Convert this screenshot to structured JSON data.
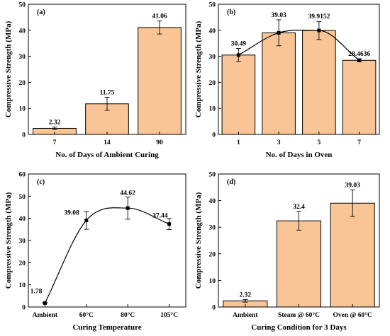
{
  "style": {
    "bar_fill": "#F9C596",
    "bar_stroke": "#000000",
    "line_color": "#000000"
  },
  "chart_data": [
    {
      "panel": "(a)",
      "type": "bar",
      "categories": [
        "7",
        "14",
        "90"
      ],
      "values": [
        2.32,
        11.75,
        41.06
      ],
      "errors": [
        0.5,
        2.5,
        2.5
      ],
      "data_labels": [
        "2.32",
        "11.75",
        "41.06"
      ],
      "xlabel": "No. of Days of Ambient Curing",
      "ylabel": "Compressive Strength (MPa)",
      "ylim": [
        0,
        50
      ],
      "yticks": [
        0,
        10,
        20,
        30,
        40,
        50
      ],
      "grid": false,
      "trend": false
    },
    {
      "panel": "(b)",
      "type": "bar",
      "categories": [
        "1",
        "3",
        "5",
        "7"
      ],
      "values": [
        30.49,
        39.03,
        39.9152,
        28.4636
      ],
      "errors": [
        2.5,
        5.0,
        3.5,
        0.6
      ],
      "data_labels": [
        "30.49",
        "39.03",
        "39.9152",
        "28.4636"
      ],
      "xlabel": "No. of Days in Oven",
      "ylabel": "Compressive Strength (MPa)",
      "ylim": [
        0,
        50
      ],
      "yticks": [
        0,
        10,
        20,
        30,
        40,
        50
      ],
      "grid": false,
      "trend": true
    },
    {
      "panel": "(c)",
      "type": "line",
      "categories": [
        "Ambient",
        "60°C",
        "80°C",
        "105°C"
      ],
      "values": [
        1.78,
        39.08,
        44.62,
        37.44
      ],
      "errors": [
        0.3,
        4.0,
        5.0,
        2.5
      ],
      "data_labels": [
        "1.78",
        "39.08",
        "44.62",
        "37.44"
      ],
      "xlabel": "Curing Temperature",
      "ylabel": "Compressive Strength (MPa)",
      "ylim": [
        0,
        60
      ],
      "yticks": [
        0,
        10,
        20,
        30,
        40,
        50,
        60
      ],
      "grid": false
    },
    {
      "panel": "(d)",
      "type": "bar",
      "categories": [
        "Ambient",
        "Steam  @ 60°C",
        "Oven  @ 60°C"
      ],
      "values": [
        2.32,
        32.4,
        39.03
      ],
      "errors": [
        0.5,
        3.5,
        5.0
      ],
      "data_labels": [
        "2.32",
        "32.4",
        "39.03"
      ],
      "xlabel": "Curing Condition for 3 Days",
      "ylabel": "Compressive Strength (MPa)",
      "ylim": [
        0,
        50
      ],
      "yticks": [
        0,
        10,
        20,
        30,
        40,
        50
      ],
      "grid": false,
      "trend": false
    }
  ]
}
